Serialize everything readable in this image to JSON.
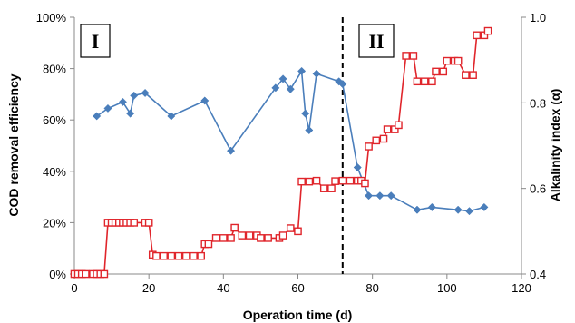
{
  "chart_data": {
    "type": "line",
    "xlabel": "Operation time (d)",
    "ylabel_left": "COD  removal efficiency",
    "ylabel_right": "Alkalinity index (α)",
    "xlim": [
      0,
      120
    ],
    "xticks": [
      0,
      20,
      40,
      60,
      80,
      100,
      120
    ],
    "ylim_left": [
      0,
      100
    ],
    "yticks_left": [
      "0%",
      "20%",
      "40%",
      "60%",
      "80%",
      "100%"
    ],
    "ylim_right": [
      0.4,
      1.0
    ],
    "yticks_right": [
      "0.4",
      "0.6",
      "0.8",
      "1.0"
    ],
    "phase_divider_x": 72,
    "phases": [
      "I",
      "II"
    ],
    "grid": false,
    "legend": "none",
    "series": [
      {
        "axis": "left",
        "color": "#4a7ebb",
        "marker": "diamond",
        "points": [
          [
            6,
            61.5
          ],
          [
            9,
            64.5
          ],
          [
            13,
            67
          ],
          [
            15,
            62.5
          ],
          [
            16,
            69.5
          ],
          [
            19,
            70.5
          ],
          [
            26,
            61.5
          ],
          [
            35,
            67.5
          ],
          [
            42,
            48
          ],
          [
            54,
            72.5
          ],
          [
            56,
            76
          ],
          [
            58,
            72
          ],
          [
            61,
            79
          ],
          [
            62,
            62.5
          ],
          [
            63,
            56
          ],
          [
            65,
            78
          ],
          [
            71,
            75
          ],
          [
            72,
            74
          ],
          [
            76,
            41.5
          ],
          [
            79,
            30.5
          ],
          [
            82,
            30.5
          ],
          [
            85,
            30.5
          ],
          [
            92,
            25
          ],
          [
            96,
            26
          ],
          [
            103,
            25
          ],
          [
            106,
            24.5
          ],
          [
            110,
            26
          ]
        ]
      },
      {
        "axis": "right",
        "color": "#e0252b",
        "marker": "square",
        "points": [
          [
            0,
            0.4
          ],
          [
            1,
            0.4
          ],
          [
            2,
            0.4
          ],
          [
            3,
            0.4
          ],
          [
            5,
            0.4
          ],
          [
            6,
            0.4
          ],
          [
            7,
            0.4
          ],
          [
            8,
            0.4
          ],
          [
            9,
            0.52
          ],
          [
            10,
            0.52
          ],
          [
            11,
            0.52
          ],
          [
            12,
            0.52
          ],
          [
            13,
            0.52
          ],
          [
            14,
            0.52
          ],
          [
            15,
            0.52
          ],
          [
            16,
            0.52
          ],
          [
            19,
            0.52
          ],
          [
            20,
            0.52
          ],
          [
            21,
            0.445
          ],
          [
            22,
            0.442
          ],
          [
            24,
            0.442
          ],
          [
            26,
            0.442
          ],
          [
            28,
            0.442
          ],
          [
            30,
            0.442
          ],
          [
            32,
            0.442
          ],
          [
            34,
            0.442
          ],
          [
            35,
            0.47
          ],
          [
            36,
            0.47
          ],
          [
            38,
            0.484
          ],
          [
            40,
            0.484
          ],
          [
            42,
            0.484
          ],
          [
            43,
            0.508
          ],
          [
            45,
            0.49
          ],
          [
            47,
            0.49
          ],
          [
            49,
            0.49
          ],
          [
            50,
            0.484
          ],
          [
            52,
            0.484
          ],
          [
            55,
            0.484
          ],
          [
            56,
            0.49
          ],
          [
            58,
            0.507
          ],
          [
            60,
            0.5
          ],
          [
            61,
            0.616
          ],
          [
            63,
            0.616
          ],
          [
            65,
            0.618
          ],
          [
            67,
            0.6
          ],
          [
            69,
            0.6
          ],
          [
            70,
            0.617
          ],
          [
            72,
            0.618
          ],
          [
            74,
            0.618
          ],
          [
            76,
            0.618
          ],
          [
            77,
            0.618
          ],
          [
            78,
            0.612
          ],
          [
            79,
            0.698
          ],
          [
            81,
            0.712
          ],
          [
            83,
            0.716
          ],
          [
            84,
            0.738
          ],
          [
            86,
            0.738
          ],
          [
            87,
            0.748
          ],
          [
            89,
            0.91
          ],
          [
            91,
            0.91
          ],
          [
            92,
            0.85
          ],
          [
            94,
            0.85
          ],
          [
            96,
            0.85
          ],
          [
            97,
            0.873
          ],
          [
            99,
            0.873
          ],
          [
            100,
            0.898
          ],
          [
            102,
            0.898
          ],
          [
            103,
            0.898
          ],
          [
            105,
            0.865
          ],
          [
            107,
            0.865
          ],
          [
            108,
            0.958
          ],
          [
            110,
            0.958
          ],
          [
            111,
            0.968
          ]
        ]
      }
    ]
  }
}
